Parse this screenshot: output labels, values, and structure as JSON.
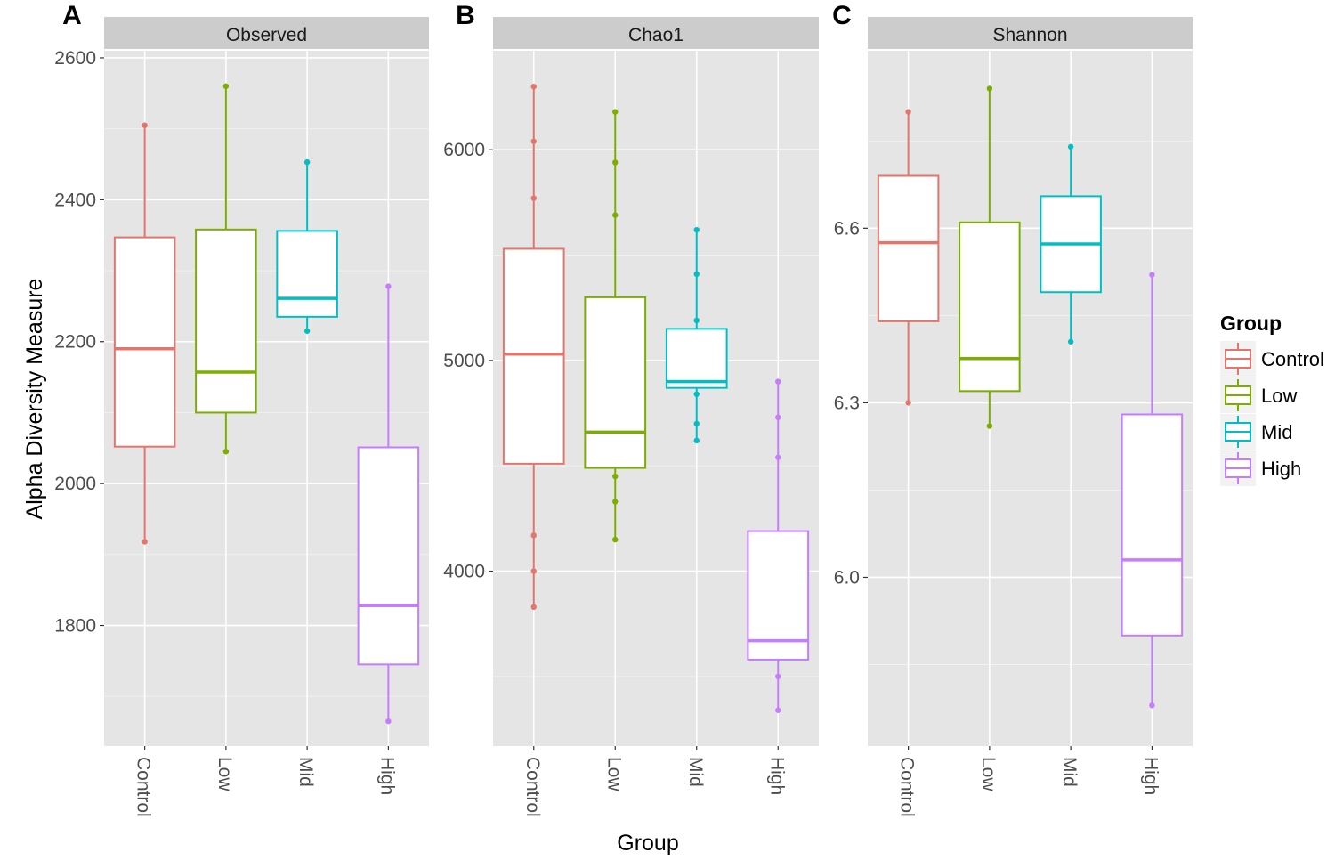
{
  "figure": {
    "x_axis_title": "Group",
    "y_axis_title": "Alpha Diversity Measure",
    "legend_title": "Group"
  },
  "groups": [
    {
      "name": "Control",
      "color": "#E2766C"
    },
    {
      "name": "Low",
      "color": "#7CAE00"
    },
    {
      "name": "Mid",
      "color": "#00BFC4"
    },
    {
      "name": "High",
      "color": "#C77CFF"
    }
  ],
  "chart_data": [
    {
      "type": "boxplot",
      "panel": "A",
      "title": "Observed",
      "xlabel": "Group",
      "ylabel": "Alpha Diversity Measure",
      "categories": [
        "Control",
        "Low",
        "Mid",
        "High"
      ],
      "ylim": [
        1630,
        2610
      ],
      "yticks": [
        1800,
        2000,
        2200,
        2400,
        2600
      ],
      "boxes": [
        {
          "category": "Control",
          "whisker_low": 1918,
          "q1": 2052,
          "median": 2190,
          "q3": 2347,
          "whisker_high": 2505,
          "points": [
            1918,
            2505
          ]
        },
        {
          "category": "Low",
          "whisker_low": 2045,
          "q1": 2100,
          "median": 2157,
          "q3": 2358,
          "whisker_high": 2560,
          "points": [
            2045,
            2560
          ]
        },
        {
          "category": "Mid",
          "whisker_low": 2215,
          "q1": 2235,
          "median": 2261,
          "q3": 2356,
          "whisker_high": 2453,
          "points": [
            2215,
            2453
          ]
        },
        {
          "category": "High",
          "whisker_low": 1665,
          "q1": 1745,
          "median": 1828,
          "q3": 2051,
          "whisker_high": 2278,
          "points": [
            1665,
            2278
          ]
        }
      ]
    },
    {
      "type": "boxplot",
      "panel": "B",
      "title": "Chao1",
      "xlabel": "Group",
      "ylabel": "Alpha Diversity Measure",
      "categories": [
        "Control",
        "Low",
        "Mid",
        "High"
      ],
      "ylim": [
        3170,
        6470
      ],
      "yticks": [
        4000,
        5000,
        6000
      ],
      "boxes": [
        {
          "category": "Control",
          "whisker_low": 3830,
          "q1": 4510,
          "median": 5030,
          "q3": 5530,
          "whisker_high": 6300,
          "points": [
            3830,
            4000,
            4170,
            5770,
            6040,
            6300
          ]
        },
        {
          "category": "Low",
          "whisker_low": 4150,
          "q1": 4490,
          "median": 4660,
          "q3": 5300,
          "whisker_high": 6180,
          "points": [
            4150,
            4330,
            4450,
            5690,
            5940,
            6180
          ]
        },
        {
          "category": "Mid",
          "whisker_low": 4620,
          "q1": 4870,
          "median": 4900,
          "q3": 5150,
          "whisker_high": 5620,
          "points": [
            4620,
            4700,
            4840,
            5190,
            5410,
            5620
          ]
        },
        {
          "category": "High",
          "whisker_low": 3340,
          "q1": 3580,
          "median": 3670,
          "q3": 4190,
          "whisker_high": 4900,
          "points": [
            3340,
            3500,
            4540,
            4730,
            4900
          ]
        }
      ]
    },
    {
      "type": "boxplot",
      "panel": "C",
      "title": "Shannon",
      "xlabel": "Group",
      "ylabel": "Alpha Diversity Measure",
      "categories": [
        "Control",
        "Low",
        "Mid",
        "High"
      ],
      "ylim": [
        5.71,
        6.905
      ],
      "yticks": [
        6.0,
        6.3,
        6.6
      ],
      "boxes": [
        {
          "category": "Control",
          "whisker_low": 6.3,
          "q1": 6.44,
          "median": 6.575,
          "q3": 6.69,
          "whisker_high": 6.8,
          "points": [
            6.3,
            6.8
          ]
        },
        {
          "category": "Low",
          "whisker_low": 6.26,
          "q1": 6.32,
          "median": 6.376,
          "q3": 6.61,
          "whisker_high": 6.84,
          "points": [
            6.26,
            6.84
          ]
        },
        {
          "category": "Mid",
          "whisker_low": 6.405,
          "q1": 6.49,
          "median": 6.573,
          "q3": 6.655,
          "whisker_high": 6.74,
          "points": [
            6.405,
            6.74
          ]
        },
        {
          "category": "High",
          "whisker_low": 5.78,
          "q1": 5.9,
          "median": 6.03,
          "q3": 6.28,
          "whisker_high": 6.52,
          "points": [
            5.78,
            6.52
          ]
        }
      ]
    }
  ]
}
